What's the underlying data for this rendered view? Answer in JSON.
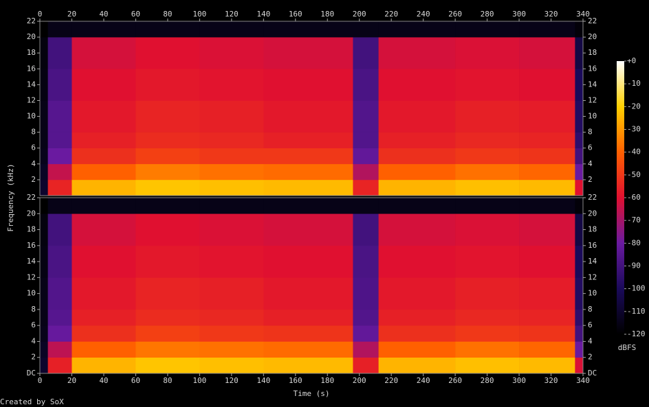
{
  "chart_data": [
    {
      "type": "heatmap",
      "ylabel": "Frequency (kHz)",
      "xlim": [
        0,
        340
      ],
      "xticks": [
        0,
        20,
        40,
        60,
        80,
        100,
        120,
        140,
        160,
        180,
        200,
        220,
        240,
        260,
        280,
        300,
        320,
        340
      ],
      "ylim": [
        0,
        22
      ],
      "yticks": [
        2,
        4,
        6,
        8,
        10,
        12,
        14,
        16,
        18,
        20,
        22
      ],
      "xbins": [
        0,
        5,
        20,
        60,
        100,
        140,
        196,
        212,
        260,
        300,
        335,
        340
      ],
      "ybins": [
        0,
        2,
        4,
        6,
        8,
        12,
        16,
        20,
        22
      ],
      "values": [
        [
          -110,
          -112,
          -114,
          -115,
          -115,
          -116,
          -117,
          -120
        ],
        [
          -55,
          -65,
          -80,
          -85,
          -85,
          -88,
          -90,
          -115
        ],
        [
          -25,
          -40,
          -52,
          -56,
          -58,
          -60,
          -62,
          -115
        ],
        [
          -22,
          -35,
          -48,
          -53,
          -55,
          -58,
          -60,
          -115
        ],
        [
          -23,
          -37,
          -50,
          -54,
          -56,
          -59,
          -61,
          -115
        ],
        [
          -24,
          -38,
          -50,
          -56,
          -58,
          -60,
          -62,
          -115
        ],
        [
          -55,
          -68,
          -82,
          -86,
          -86,
          -88,
          -90,
          -115
        ],
        [
          -25,
          -40,
          -52,
          -56,
          -58,
          -60,
          -62,
          -115
        ],
        [
          -23,
          -37,
          -50,
          -54,
          -56,
          -59,
          -61,
          -115
        ],
        [
          -24,
          -39,
          -51,
          -55,
          -57,
          -60,
          -62,
          -115
        ],
        [
          -60,
          -80,
          -90,
          -95,
          -98,
          -100,
          -105,
          -118
        ]
      ],
      "clim": [
        -120,
        0
      ],
      "colormap": [
        "#000000",
        "#1a0a5a",
        "#6a1aa0",
        "#e01030",
        "#ff6000",
        "#ffd000",
        "#ffffff"
      ],
      "colorbar": {
        "label": "dBFS",
        "ticks": [
          {
            "value": 0,
            "label": "+0"
          },
          -10,
          -20,
          -30,
          -40,
          -50,
          -60,
          -70,
          -80,
          -90,
          -100,
          -110,
          -120
        ]
      }
    },
    {
      "type": "heatmap",
      "xlabel": "Time (s)",
      "xlim": [
        0,
        340
      ],
      "xticks": [
        0,
        20,
        40,
        60,
        80,
        100,
        120,
        140,
        160,
        180,
        200,
        220,
        240,
        260,
        280,
        300,
        320,
        340
      ],
      "ylim": [
        0,
        22
      ],
      "yticks": [
        {
          "value": 0,
          "label": "DC"
        },
        2,
        4,
        6,
        8,
        10,
        12,
        14,
        16,
        18,
        20,
        22
      ],
      "xbins": [
        0,
        5,
        20,
        60,
        100,
        140,
        196,
        212,
        260,
        300,
        335,
        340
      ],
      "ybins": [
        0,
        2,
        4,
        6,
        8,
        12,
        16,
        20,
        22
      ],
      "values": [
        [
          -110,
          -112,
          -114,
          -115,
          -115,
          -116,
          -117,
          -120
        ],
        [
          -56,
          -66,
          -81,
          -85,
          -86,
          -88,
          -90,
          -115
        ],
        [
          -25,
          -40,
          -52,
          -56,
          -58,
          -60,
          -62,
          -115
        ],
        [
          -22,
          -36,
          -48,
          -53,
          -55,
          -58,
          -60,
          -115
        ],
        [
          -23,
          -37,
          -50,
          -54,
          -56,
          -59,
          -61,
          -115
        ],
        [
          -24,
          -38,
          -51,
          -56,
          -58,
          -60,
          -62,
          -115
        ],
        [
          -56,
          -68,
          -82,
          -86,
          -87,
          -88,
          -90,
          -115
        ],
        [
          -25,
          -40,
          -52,
          -56,
          -58,
          -60,
          -62,
          -115
        ],
        [
          -23,
          -37,
          -50,
          -54,
          -56,
          -59,
          -61,
          -115
        ],
        [
          -24,
          -39,
          -51,
          -55,
          -57,
          -60,
          -62,
          -115
        ],
        [
          -61,
          -80,
          -90,
          -95,
          -98,
          -100,
          -105,
          -118
        ]
      ]
    }
  ],
  "footer": "Created by SoX"
}
